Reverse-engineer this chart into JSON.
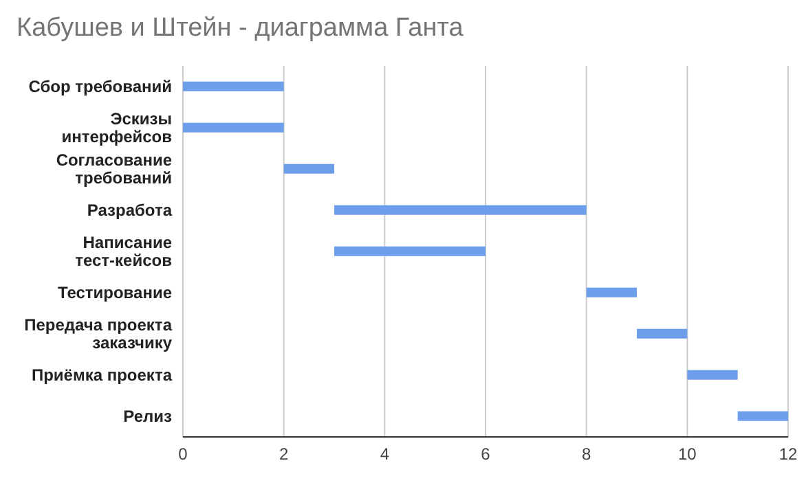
{
  "chart_data": {
    "type": "bar",
    "orientation": "horizontal",
    "title": "Кабушев и Штейн - диаграмма Ганта",
    "categories": [
      "Сбор требований",
      "Эскизы интерфейсов",
      "Согласование требований",
      "Разработа",
      "Написание тест-кейсов",
      "Тестирование",
      "Передача проекта заказчику",
      "Приёмка проекта",
      "Релиз"
    ],
    "base": [
      0,
      0,
      2,
      3,
      3,
      8,
      9,
      10,
      11
    ],
    "values": [
      2,
      2,
      1,
      5,
      3,
      1,
      1,
      1,
      1
    ],
    "color": "#6d9eeb",
    "xlim": [
      0,
      12
    ],
    "xticks": [
      0,
      2,
      4,
      6,
      8,
      10,
      12
    ],
    "grid": "x",
    "legend": false
  }
}
